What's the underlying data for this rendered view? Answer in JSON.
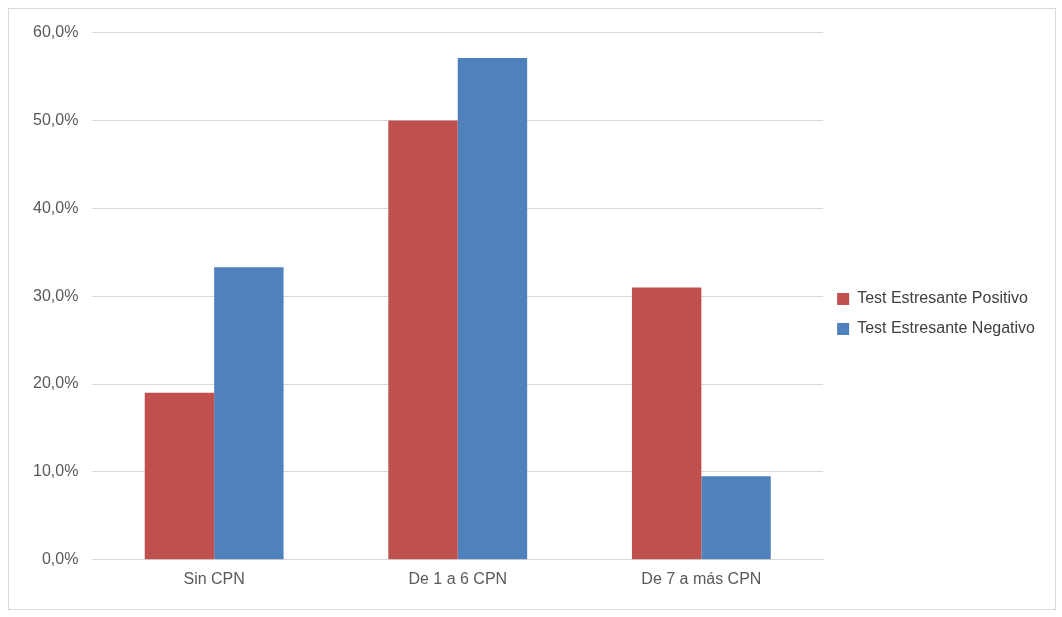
{
  "chart_data": {
    "type": "bar",
    "categories": [
      "Sin CPN",
      "De 1 a 6 CPN",
      "De 7 a más CPN"
    ],
    "series": [
      {
        "name": "Test Estresante Positivo",
        "color": "#c0504d",
        "values": [
          19.0,
          50.0,
          31.0
        ]
      },
      {
        "name": "Test Estresante Negativo",
        "color": "#4f81bd",
        "values": [
          33.3,
          57.1,
          9.5
        ]
      }
    ],
    "ylim": [
      0,
      60
    ],
    "yticks": [
      {
        "value": 0,
        "label": "0,0%"
      },
      {
        "value": 10,
        "label": "10,0%"
      },
      {
        "value": 20,
        "label": "20,0%"
      },
      {
        "value": 30,
        "label": "30,0%"
      },
      {
        "value": 40,
        "label": "40,0%"
      },
      {
        "value": 50,
        "label": "50,0%"
      },
      {
        "value": 60,
        "label": "60,0%"
      }
    ],
    "grid": "y",
    "legend": "right"
  }
}
